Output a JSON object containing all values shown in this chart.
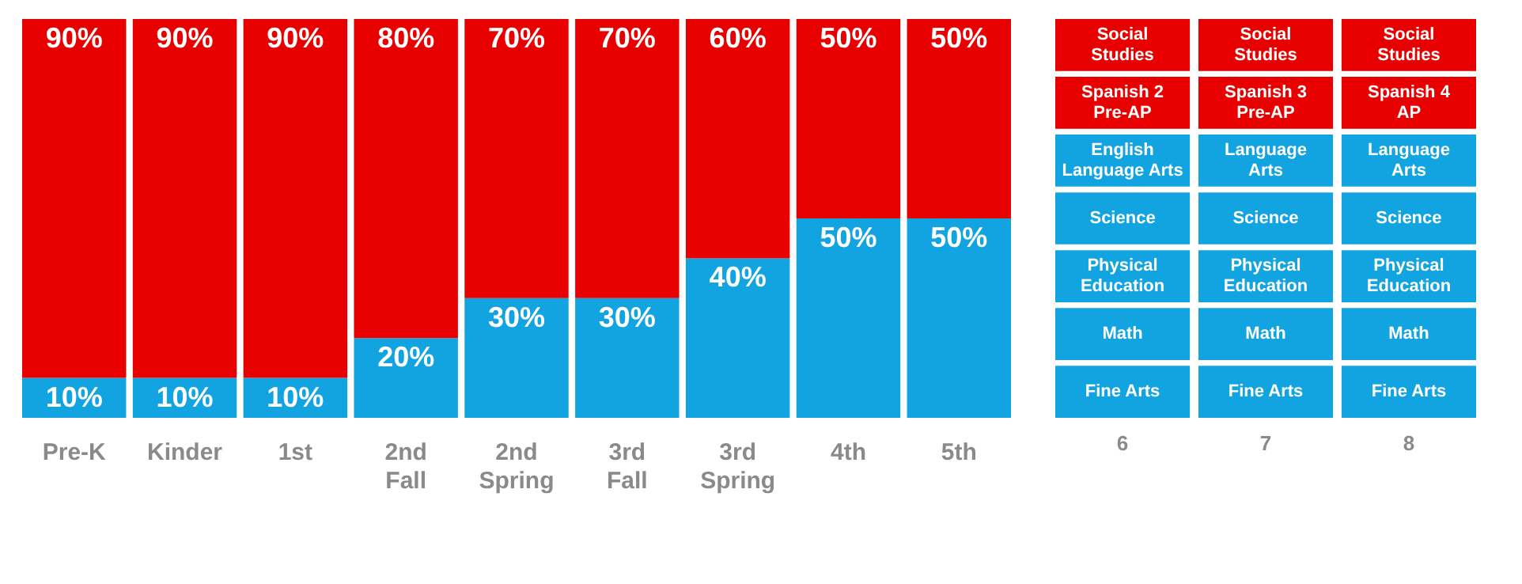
{
  "chart_data": [
    {
      "type": "bar",
      "stacked": true,
      "tick_labels": "x",
      "categories": [
        "Pre-K",
        "Kinder",
        "1st",
        "2nd\nFall",
        "2nd\nSpring",
        "3rd\nFall",
        "3rd\nSpring",
        "4th",
        "5th"
      ],
      "series": [
        {
          "color": "#12a4e0",
          "values": [
            10,
            10,
            10,
            20,
            30,
            30,
            40,
            50,
            50
          ],
          "value_labels": [
            "10%",
            "10%",
            "10%",
            "20%",
            "30%",
            "30%",
            "40%",
            "50%",
            "50%"
          ]
        },
        {
          "color": "#e80000",
          "values": [
            90,
            90,
            90,
            80,
            70,
            70,
            60,
            50,
            50
          ],
          "value_labels": [
            "90%",
            "90%",
            "90%",
            "80%",
            "70%",
            "70%",
            "60%",
            "50%",
            "50%"
          ]
        }
      ]
    },
    {
      "type": "other",
      "categories": [
        "6",
        "7",
        "8"
      ],
      "annotations": [
        "Social\nStudies",
        "Social\nStudies",
        "Social\nStudies",
        "Spanish 2\nPre-AP",
        "Spanish 3\nPre-AP",
        "Spanish 4\nAP",
        "English\nLanguage Arts",
        "Language\nArts",
        "Language\nArts",
        "Science",
        "Science",
        "Science",
        "Physical\nEducation",
        "Physical\nEducation",
        "Physical\nEducation",
        "Math",
        "Math",
        "Math",
        "Fine Arts",
        "Fine Arts",
        "Fine Arts"
      ],
      "colors": [
        "#e80000",
        "#e80000",
        "#e80000",
        "#e80000",
        "#e80000",
        "#e80000",
        "#12a4e0",
        "#12a4e0",
        "#12a4e0",
        "#12a4e0",
        "#12a4e0",
        "#12a4e0",
        "#12a4e0",
        "#12a4e0",
        "#12a4e0",
        "#12a4e0",
        "#12a4e0",
        "#12a4e0",
        "#12a4e0",
        "#12a4e0",
        "#12a4e0"
      ]
    }
  ]
}
